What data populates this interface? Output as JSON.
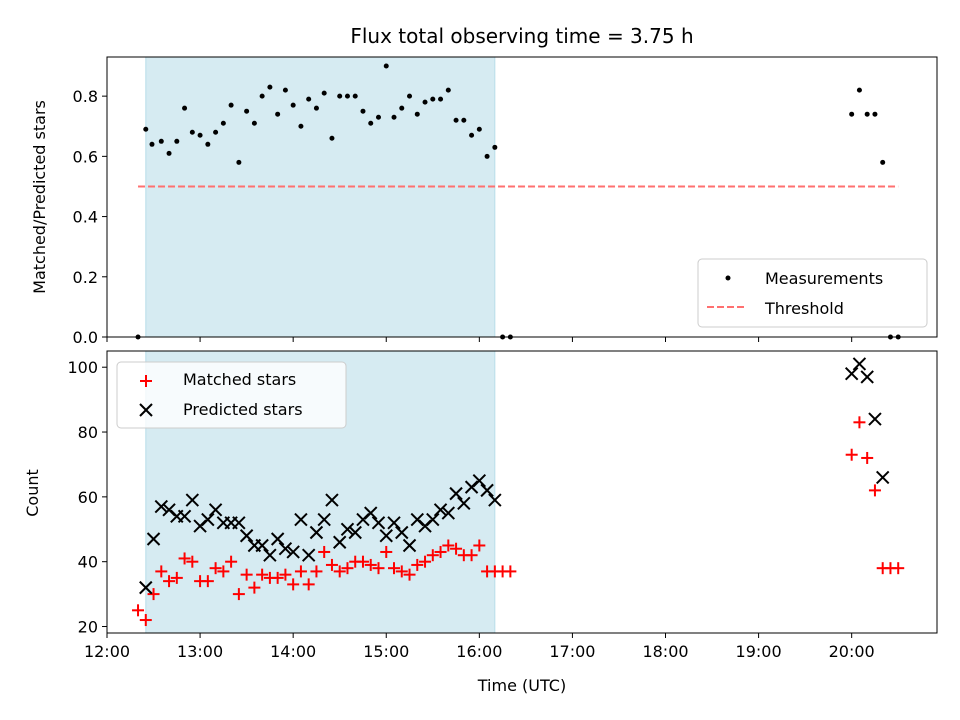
{
  "chart_data": [
    {
      "type": "scatter",
      "title": "Flux total observing time = 3.75 h",
      "xlabel": "",
      "ylabel": "Matched/Predicted stars",
      "xlim": [
        "12:00",
        "20:55"
      ],
      "ylim": [
        0,
        0.93
      ],
      "yticks": [
        0.0,
        0.2,
        0.4,
        0.6,
        0.8
      ],
      "grid": false,
      "legend_position": "lower-right",
      "shaded_span": {
        "start": "12:25",
        "end": "16:10",
        "color": "#add8e6"
      },
      "series": [
        {
          "name": "Measurements",
          "marker": "dot",
          "color": "#000000",
          "points": [
            [
              "12:20",
              0.0
            ],
            [
              "12:25",
              0.69
            ],
            [
              "12:29",
              0.64
            ],
            [
              "12:35",
              0.65
            ],
            [
              "12:40",
              0.61
            ],
            [
              "12:45",
              0.65
            ],
            [
              "12:50",
              0.76
            ],
            [
              "12:55",
              0.68
            ],
            [
              "13:00",
              0.67
            ],
            [
              "13:05",
              0.64
            ],
            [
              "13:10",
              0.68
            ],
            [
              "13:15",
              0.71
            ],
            [
              "13:20",
              0.77
            ],
            [
              "13:25",
              0.58
            ],
            [
              "13:30",
              0.75
            ],
            [
              "13:35",
              0.71
            ],
            [
              "13:40",
              0.8
            ],
            [
              "13:45",
              0.83
            ],
            [
              "13:50",
              0.74
            ],
            [
              "13:55",
              0.82
            ],
            [
              "14:00",
              0.77
            ],
            [
              "14:05",
              0.7
            ],
            [
              "14:10",
              0.79
            ],
            [
              "14:15",
              0.76
            ],
            [
              "14:20",
              0.81
            ],
            [
              "14:25",
              0.66
            ],
            [
              "14:30",
              0.8
            ],
            [
              "14:35",
              0.8
            ],
            [
              "14:40",
              0.8
            ],
            [
              "14:45",
              0.75
            ],
            [
              "14:50",
              0.71
            ],
            [
              "14:55",
              0.73
            ],
            [
              "15:00",
              0.9
            ],
            [
              "15:05",
              0.73
            ],
            [
              "15:10",
              0.76
            ],
            [
              "15:15",
              0.8
            ],
            [
              "15:20",
              0.74
            ],
            [
              "15:25",
              0.78
            ],
            [
              "15:30",
              0.79
            ],
            [
              "15:35",
              0.79
            ],
            [
              "15:40",
              0.82
            ],
            [
              "15:45",
              0.72
            ],
            [
              "15:50",
              0.72
            ],
            [
              "15:55",
              0.67
            ],
            [
              "16:00",
              0.69
            ],
            [
              "16:05",
              0.6
            ],
            [
              "16:10",
              0.63
            ],
            [
              "16:15",
              0.0
            ],
            [
              "16:20",
              0.0
            ],
            [
              "20:00",
              0.74
            ],
            [
              "20:05",
              0.82
            ],
            [
              "20:10",
              0.74
            ],
            [
              "20:15",
              0.74
            ],
            [
              "20:20",
              0.58
            ],
            [
              "20:25",
              0.0
            ],
            [
              "20:30",
              0.0
            ]
          ]
        },
        {
          "name": "Threshold",
          "marker": "dashed-line",
          "color": "#ff7070",
          "points": [
            [
              "12:20",
              0.5
            ],
            [
              "20:30",
              0.5
            ]
          ]
        }
      ]
    },
    {
      "type": "scatter",
      "title": "",
      "xlabel": "Time (UTC)",
      "ylabel": "Count",
      "xlim": [
        "12:00",
        "20:55"
      ],
      "ylim": [
        18,
        105
      ],
      "yticks": [
        20,
        40,
        60,
        80,
        100
      ],
      "xticks": [
        "12:00",
        "13:00",
        "14:00",
        "15:00",
        "16:00",
        "17:00",
        "18:00",
        "19:00",
        "20:00"
      ],
      "grid": false,
      "legend_position": "upper-left",
      "shaded_span": {
        "start": "12:25",
        "end": "16:10",
        "color": "#add8e6"
      },
      "series": [
        {
          "name": "Matched stars",
          "marker": "plus",
          "color": "#ff0000",
          "points": [
            [
              "12:20",
              25
            ],
            [
              "12:25",
              22
            ],
            [
              "12:30",
              30
            ],
            [
              "12:35",
              37
            ],
            [
              "12:40",
              34
            ],
            [
              "12:45",
              35
            ],
            [
              "12:50",
              41
            ],
            [
              "12:55",
              40
            ],
            [
              "13:00",
              34
            ],
            [
              "13:05",
              34
            ],
            [
              "13:10",
              38
            ],
            [
              "13:15",
              37
            ],
            [
              "13:20",
              40
            ],
            [
              "13:25",
              30
            ],
            [
              "13:30",
              36
            ],
            [
              "13:35",
              32
            ],
            [
              "13:40",
              36
            ],
            [
              "13:45",
              35
            ],
            [
              "13:50",
              35
            ],
            [
              "13:55",
              36
            ],
            [
              "14:00",
              33
            ],
            [
              "14:05",
              37
            ],
            [
              "14:10",
              33
            ],
            [
              "14:15",
              37
            ],
            [
              "14:20",
              43
            ],
            [
              "14:25",
              39
            ],
            [
              "14:30",
              37
            ],
            [
              "14:35",
              38
            ],
            [
              "14:40",
              40
            ],
            [
              "14:45",
              40
            ],
            [
              "14:50",
              39
            ],
            [
              "14:55",
              38
            ],
            [
              "15:00",
              43
            ],
            [
              "15:05",
              38
            ],
            [
              "15:10",
              37
            ],
            [
              "15:15",
              36
            ],
            [
              "15:20",
              39
            ],
            [
              "15:25",
              40
            ],
            [
              "15:30",
              42
            ],
            [
              "15:35",
              43
            ],
            [
              "15:40",
              45
            ],
            [
              "15:45",
              44
            ],
            [
              "15:50",
              42
            ],
            [
              "15:55",
              42
            ],
            [
              "16:00",
              45
            ],
            [
              "16:05",
              37
            ],
            [
              "16:10",
              37
            ],
            [
              "16:15",
              37
            ],
            [
              "16:20",
              37
            ],
            [
              "20:00",
              73
            ],
            [
              "20:05",
              83
            ],
            [
              "20:10",
              72
            ],
            [
              "20:15",
              62
            ],
            [
              "20:20",
              38
            ],
            [
              "20:25",
              38
            ],
            [
              "20:30",
              38
            ]
          ]
        },
        {
          "name": "Predicted stars",
          "marker": "x",
          "color": "#000000",
          "points": [
            [
              "12:25",
              32
            ],
            [
              "12:30",
              47
            ],
            [
              "12:35",
              57
            ],
            [
              "12:40",
              56
            ],
            [
              "12:45",
              54
            ],
            [
              "12:50",
              54
            ],
            [
              "12:55",
              59
            ],
            [
              "13:00",
              51
            ],
            [
              "13:05",
              53
            ],
            [
              "13:10",
              56
            ],
            [
              "13:15",
              52
            ],
            [
              "13:20",
              52
            ],
            [
              "13:25",
              52
            ],
            [
              "13:30",
              48
            ],
            [
              "13:35",
              45
            ],
            [
              "13:40",
              45
            ],
            [
              "13:45",
              42
            ],
            [
              "13:50",
              47
            ],
            [
              "13:55",
              44
            ],
            [
              "14:00",
              43
            ],
            [
              "14:05",
              53
            ],
            [
              "14:10",
              42
            ],
            [
              "14:15",
              49
            ],
            [
              "14:20",
              53
            ],
            [
              "14:25",
              59
            ],
            [
              "14:30",
              46
            ],
            [
              "14:35",
              50
            ],
            [
              "14:40",
              49
            ],
            [
              "14:45",
              53
            ],
            [
              "14:50",
              55
            ],
            [
              "14:55",
              52
            ],
            [
              "15:00",
              48
            ],
            [
              "15:05",
              52
            ],
            [
              "15:10",
              49
            ],
            [
              "15:15",
              45
            ],
            [
              "15:20",
              53
            ],
            [
              "15:25",
              51
            ],
            [
              "15:30",
              53
            ],
            [
              "15:35",
              56
            ],
            [
              "15:40",
              55
            ],
            [
              "15:45",
              61
            ],
            [
              "15:50",
              58
            ],
            [
              "15:55",
              63
            ],
            [
              "16:00",
              65
            ],
            [
              "16:05",
              62
            ],
            [
              "16:10",
              59
            ],
            [
              "20:00",
              98
            ],
            [
              "20:05",
              101
            ],
            [
              "20:10",
              97
            ],
            [
              "20:15",
              84
            ],
            [
              "20:20",
              66
            ]
          ]
        }
      ]
    }
  ]
}
